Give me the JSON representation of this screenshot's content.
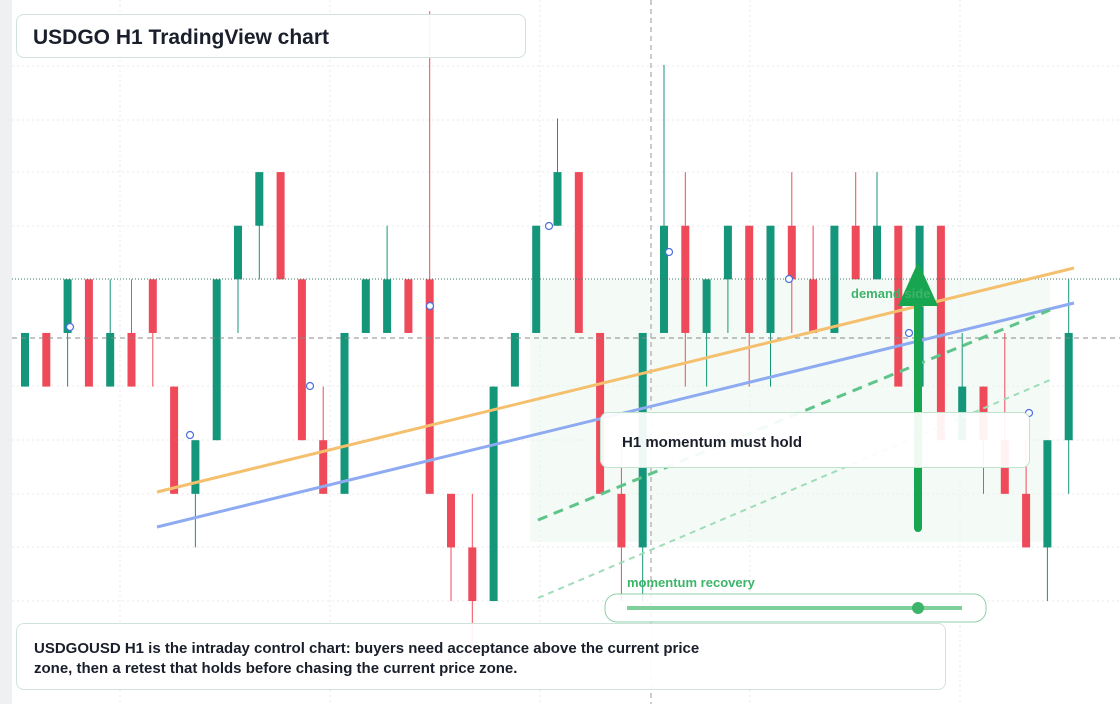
{
  "chart_data": {
    "type": "candlestick",
    "title": "USDGO H1 TradingView chart",
    "open": [
      5,
      6,
      6,
      7,
      5,
      6,
      7,
      5,
      3,
      4,
      7,
      8,
      9,
      7,
      4,
      3,
      6,
      6,
      7,
      7,
      3,
      2,
      1,
      5,
      6,
      8,
      9,
      6,
      3,
      2,
      6,
      8,
      6,
      7,
      8,
      6,
      8,
      7,
      6,
      8,
      7,
      8,
      5,
      8,
      4,
      5,
      4,
      3,
      2,
      4
    ],
    "high": [
      6,
      6,
      7,
      7,
      7,
      7,
      7,
      5,
      4,
      7,
      8,
      9,
      9,
      7,
      5,
      6,
      7,
      8,
      7,
      12,
      3,
      3,
      5,
      6,
      8,
      10,
      9,
      6,
      4,
      6,
      11,
      9,
      7,
      8,
      8,
      8,
      9,
      8,
      8,
      9,
      9,
      8,
      8,
      8,
      6,
      5,
      6,
      4,
      4,
      7
    ],
    "low": [
      5,
      5,
      5,
      5,
      5,
      5,
      5,
      3,
      2,
      4,
      6,
      7,
      7,
      4,
      3,
      3,
      6,
      6,
      6,
      3,
      1,
      0,
      1,
      5,
      6,
      8,
      6,
      3,
      1,
      1,
      6,
      5,
      5,
      6,
      5,
      5,
      6,
      6,
      6,
      7,
      7,
      5,
      5,
      4,
      4,
      3,
      3,
      2,
      1,
      3
    ],
    "close": [
      6,
      5,
      7,
      5,
      6,
      5,
      6,
      3,
      4,
      7,
      8,
      9,
      7,
      4,
      3,
      6,
      7,
      7,
      6,
      3,
      2,
      1,
      5,
      6,
      8,
      9,
      6,
      3,
      2,
      6,
      8,
      6,
      7,
      8,
      6,
      8,
      7,
      6,
      8,
      7,
      8,
      5,
      8,
      4,
      5,
      4,
      3,
      2,
      4,
      6
    ],
    "ylim": [
      -0.92,
      12.21
    ],
    "colors": {
      "up": "#14967a",
      "down": "#ef4a5a"
    },
    "annotations": [
      "demand side",
      "H1 momentum must hold",
      "momentum recovery"
    ],
    "note": "USDGOUSD H1 is the intraday control chart: buyers need acceptance above the current price zone, then a retest that holds before chasing the current price zone."
  }
}
